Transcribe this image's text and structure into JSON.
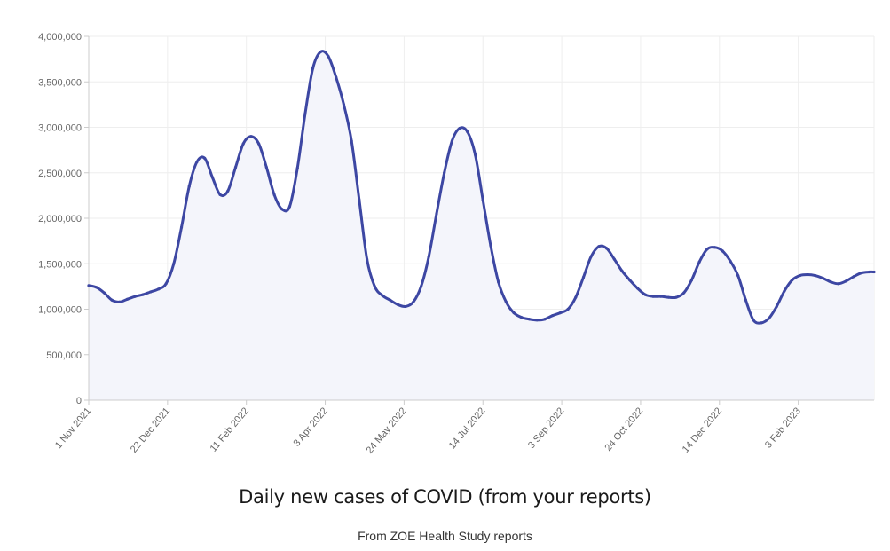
{
  "chart_data": {
    "type": "area",
    "title": "Daily new cases of COVID (from your reports)",
    "subtitle": "From ZOE Health Study reports",
    "xlabel": "",
    "ylabel": "",
    "ylim": [
      0,
      4000000
    ],
    "y_ticks": [
      0,
      500000,
      1000000,
      1500000,
      2000000,
      2500000,
      3000000,
      3500000,
      4000000
    ],
    "y_tick_labels": [
      "0",
      "500,000",
      "1,000,000",
      "1,500,000",
      "2,000,000",
      "2,500,000",
      "3,000,000",
      "3,500,000",
      "4,000,000"
    ],
    "x_range": [
      "2021-11-01",
      "2023-03-24"
    ],
    "x_ticks": [
      "2021-11-01",
      "2021-12-22",
      "2022-02-11",
      "2022-04-03",
      "2022-05-24",
      "2022-07-14",
      "2022-09-03",
      "2022-10-24",
      "2022-12-14",
      "2023-02-03"
    ],
    "x_tick_labels": [
      "1 Nov 2021",
      "22 Dec 2021",
      "11 Feb 2022",
      "3 Apr 2022",
      "24 May 2022",
      "14 Jul 2022",
      "3 Sep 2022",
      "24 Oct 2022",
      "14 Dec 2022",
      "3 Feb 2023"
    ],
    "grid": true,
    "legend": "none",
    "line_color": "#3d47a3",
    "fill_color": "#f4f5fb",
    "series": [
      {
        "x": [
          "2021-11-01",
          "2021-11-06",
          "2021-11-11",
          "2021-11-16",
          "2021-11-21",
          "2021-11-26",
          "2021-12-01",
          "2021-12-06",
          "2021-12-11",
          "2021-12-16",
          "2021-12-21",
          "2021-12-26",
          "2021-12-31",
          "2022-01-05",
          "2022-01-10",
          "2022-01-15",
          "2022-01-20",
          "2022-01-25",
          "2022-01-30",
          "2022-02-04",
          "2022-02-09",
          "2022-02-14",
          "2022-02-19",
          "2022-02-24",
          "2022-03-01",
          "2022-03-06",
          "2022-03-11",
          "2022-03-16",
          "2022-03-21",
          "2022-03-26",
          "2022-03-31",
          "2022-04-05",
          "2022-04-10",
          "2022-04-15",
          "2022-04-20",
          "2022-04-25",
          "2022-04-30",
          "2022-05-05",
          "2022-05-10",
          "2022-05-15",
          "2022-05-20",
          "2022-05-25",
          "2022-05-30",
          "2022-06-04",
          "2022-06-09",
          "2022-06-14",
          "2022-06-19",
          "2022-06-24",
          "2022-06-29",
          "2022-07-04",
          "2022-07-09",
          "2022-07-14",
          "2022-07-19",
          "2022-07-24",
          "2022-07-29",
          "2022-08-03",
          "2022-08-08",
          "2022-08-13",
          "2022-08-18",
          "2022-08-23",
          "2022-08-28",
          "2022-09-02",
          "2022-09-07",
          "2022-09-12",
          "2022-09-17",
          "2022-09-22",
          "2022-09-27",
          "2022-10-02",
          "2022-10-07",
          "2022-10-12",
          "2022-10-17",
          "2022-10-22",
          "2022-10-27",
          "2022-11-01",
          "2022-11-06",
          "2022-11-11",
          "2022-11-16",
          "2022-11-21",
          "2022-11-26",
          "2022-12-01",
          "2022-12-06",
          "2022-12-11",
          "2022-12-16",
          "2022-12-21",
          "2022-12-26",
          "2022-12-31",
          "2023-01-05",
          "2023-01-10",
          "2023-01-15",
          "2023-01-20",
          "2023-01-25",
          "2023-01-30",
          "2023-02-04",
          "2023-02-09",
          "2023-02-14",
          "2023-02-19",
          "2023-02-24",
          "2023-03-01",
          "2023-03-06",
          "2023-03-11",
          "2023-03-16",
          "2023-03-21",
          "2023-03-24"
        ],
        "values": [
          1260000,
          1240000,
          1180000,
          1100000,
          1080000,
          1110000,
          1140000,
          1160000,
          1190000,
          1220000,
          1280000,
          1500000,
          1900000,
          2350000,
          2620000,
          2660000,
          2450000,
          2260000,
          2300000,
          2560000,
          2820000,
          2900000,
          2820000,
          2560000,
          2260000,
          2100000,
          2130000,
          2550000,
          3150000,
          3650000,
          3830000,
          3780000,
          3550000,
          3250000,
          2850000,
          2200000,
          1550000,
          1250000,
          1150000,
          1100000,
          1050000,
          1030000,
          1080000,
          1250000,
          1580000,
          2050000,
          2500000,
          2850000,
          2990000,
          2950000,
          2700000,
          2200000,
          1700000,
          1300000,
          1080000,
          960000,
          910000,
          890000,
          880000,
          890000,
          930000,
          960000,
          1000000,
          1130000,
          1350000,
          1580000,
          1690000,
          1670000,
          1550000,
          1420000,
          1320000,
          1230000,
          1160000,
          1140000,
          1140000,
          1130000,
          1130000,
          1180000,
          1320000,
          1520000,
          1660000,
          1680000,
          1640000,
          1530000,
          1370000,
          1100000,
          880000,
          850000,
          900000,
          1030000,
          1200000,
          1320000,
          1370000,
          1380000,
          1370000,
          1340000,
          1300000,
          1280000,
          1310000,
          1360000,
          1400000,
          1410000,
          1410000
        ]
      }
    ]
  }
}
